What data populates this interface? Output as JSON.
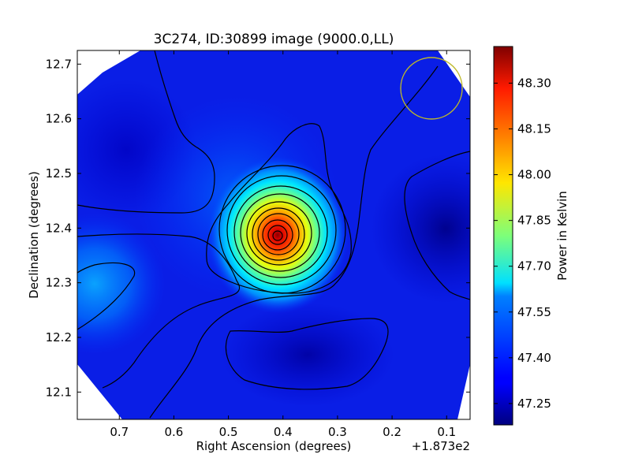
{
  "chart_data": {
    "type": "heatmap",
    "title": "3C274, ID:30899 image (9000.0,LL)",
    "xlabel": "Right Ascension (degrees)",
    "ylabel": "Declination (degrees)",
    "x_offset_label": "+1.873e2",
    "xlim": [
      0.777,
      0.057
    ],
    "ylim": [
      12.05,
      12.725
    ],
    "x_ticks": [
      {
        "value": 0.7,
        "label": "0.7"
      },
      {
        "value": 0.6,
        "label": "0.6"
      },
      {
        "value": 0.5,
        "label": "0.5"
      },
      {
        "value": 0.4,
        "label": "0.4"
      },
      {
        "value": 0.3,
        "label": "0.3"
      },
      {
        "value": 0.2,
        "label": "0.2"
      },
      {
        "value": 0.1,
        "label": "0.1"
      }
    ],
    "y_ticks": [
      {
        "value": 12.1,
        "label": "12.1"
      },
      {
        "value": 12.2,
        "label": "12.2"
      },
      {
        "value": 12.3,
        "label": "12.3"
      },
      {
        "value": 12.4,
        "label": "12.4"
      },
      {
        "value": 12.5,
        "label": "12.5"
      },
      {
        "value": 12.6,
        "label": "12.6"
      },
      {
        "value": 12.7,
        "label": "12.7"
      }
    ],
    "peak": {
      "x": 0.405,
      "y": 12.385,
      "value": 48.4
    },
    "beam_circle": {
      "x": 0.13,
      "y": 12.655,
      "radius_deg": 0.058,
      "color": "#bdb82a"
    },
    "colorbar": {
      "label": "Power in Kelvin",
      "min": 47.18,
      "max": 48.42,
      "colormap": "jet",
      "ticks": [
        {
          "value": 48.3,
          "label": "48.30"
        },
        {
          "value": 48.15,
          "label": "48.15"
        },
        {
          "value": 48.0,
          "label": "48.00"
        },
        {
          "value": 47.85,
          "label": "47.85"
        },
        {
          "value": 47.7,
          "label": "47.70"
        },
        {
          "value": 47.55,
          "label": "47.55"
        },
        {
          "value": 47.4,
          "label": "47.40"
        },
        {
          "value": 47.25,
          "label": "47.25"
        }
      ]
    },
    "grid": false
  }
}
